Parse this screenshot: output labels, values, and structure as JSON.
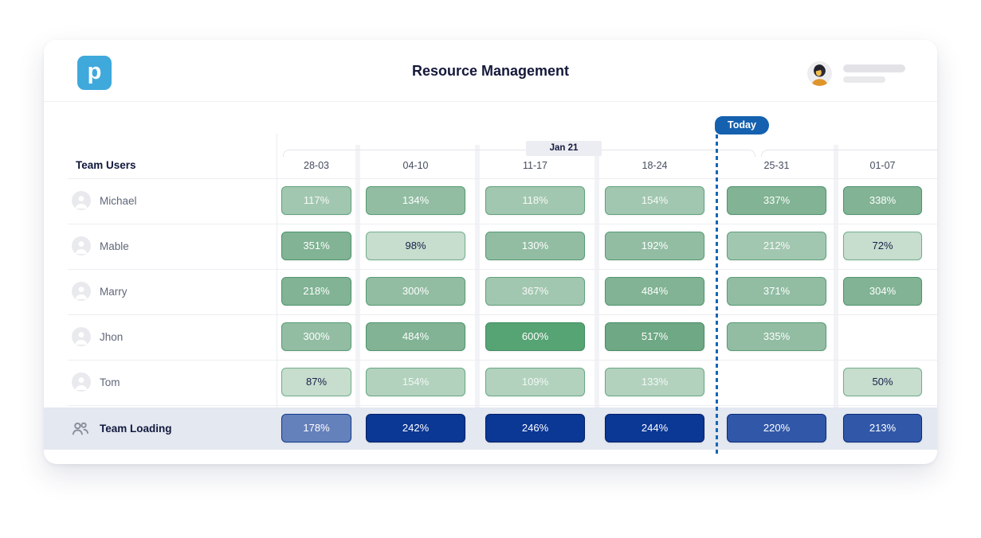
{
  "app": {
    "title": "Resource Management",
    "logo_letter": "p",
    "logo_color": "#3FA9DC"
  },
  "today": {
    "label": "Today",
    "color": "#1561AF",
    "line_color": "#1566B5"
  },
  "timeline": {
    "month_label": "Jan 21",
    "weeks": [
      "28-03",
      "04-10",
      "11-17",
      "18-24",
      "25-31",
      "01-07"
    ]
  },
  "table": {
    "users_header": "Team Users",
    "rows": [
      {
        "name": "Michael",
        "cells": [
          {
            "value": "117%",
            "tone": "g3"
          },
          {
            "value": "134%",
            "tone": "g4"
          },
          {
            "value": "118%",
            "tone": "g3"
          },
          {
            "value": "154%",
            "tone": "g3"
          },
          {
            "value": "337%",
            "tone": "g5"
          },
          {
            "value": "338%",
            "tone": "g5"
          }
        ]
      },
      {
        "name": "Mable",
        "cells": [
          {
            "value": "351%",
            "tone": "g5"
          },
          {
            "value": "98%",
            "tone": "g1"
          },
          {
            "value": "130%",
            "tone": "g4"
          },
          {
            "value": "192%",
            "tone": "g4"
          },
          {
            "value": "212%",
            "tone": "g3"
          },
          {
            "value": "72%",
            "tone": "g1"
          }
        ]
      },
      {
        "name": "Marry",
        "cells": [
          {
            "value": "218%",
            "tone": "g5"
          },
          {
            "value": "300%",
            "tone": "g4"
          },
          {
            "value": "367%",
            "tone": "g3"
          },
          {
            "value": "484%",
            "tone": "g5"
          },
          {
            "value": "371%",
            "tone": "g4"
          },
          {
            "value": "304%",
            "tone": "g5"
          }
        ]
      },
      {
        "name": "Jhon",
        "cells": [
          {
            "value": "300%",
            "tone": "g4"
          },
          {
            "value": "484%",
            "tone": "g5"
          },
          {
            "value": "600%",
            "tone": "g7"
          },
          {
            "value": "517%",
            "tone": "g6"
          },
          {
            "value": "335%",
            "tone": "g4"
          },
          null
        ]
      },
      {
        "name": "Tom",
        "cells": [
          {
            "value": "87%",
            "tone": "g1"
          },
          {
            "value": "154%",
            "tone": "g2"
          },
          {
            "value": "109%",
            "tone": "g2"
          },
          {
            "value": "133%",
            "tone": "g2"
          },
          null,
          {
            "value": "50%",
            "tone": "g1"
          }
        ]
      }
    ],
    "summary": {
      "name": "Team Loading",
      "cells": [
        {
          "value": "178%",
          "tone": "b1"
        },
        {
          "value": "242%",
          "tone": "b2"
        },
        {
          "value": "246%",
          "tone": "b2"
        },
        {
          "value": "244%",
          "tone": "b2"
        },
        {
          "value": "220%",
          "tone": "b3"
        },
        {
          "value": "213%",
          "tone": "b3"
        }
      ]
    }
  },
  "palette": {
    "g1": {
      "bg": "#C7DDCD",
      "bd": "#74AF8E",
      "tx": "#17204A",
      "bw": 1
    },
    "g2": {
      "bg": "#B2D2BE",
      "bd": "#69A884",
      "tx": "#F4F8F5",
      "bw": 1
    },
    "g3": {
      "bg": "#A2C7B0",
      "bd": "#60A17C",
      "tx": "#F7FAF8",
      "bw": 1
    },
    "g4": {
      "bg": "#92BDA3",
      "bd": "#589B74",
      "tx": "#FFFFFF",
      "bw": 1
    },
    "g5": {
      "bg": "#81B394",
      "bd": "#4F946D",
      "tx": "#FFFFFF",
      "bw": 1
    },
    "g6": {
      "bg": "#6FA885",
      "bd": "#458B63",
      "tx": "#FFFFFF",
      "bw": 1
    },
    "g7": {
      "bg": "#56A373",
      "bd": "#3E8E60",
      "tx": "#FFFFFF",
      "bw": 1
    },
    "b1": {
      "bg": "#6581BB",
      "bd": "#123A8B",
      "tx": "#FFFFFF",
      "bw": 1.5
    },
    "b2": {
      "bg": "#0B3795",
      "bd": "#021F63",
      "tx": "#FFFFFF",
      "bw": 1.5
    },
    "b3": {
      "bg": "#3158A8",
      "bd": "#0A2C79",
      "tx": "#FFFFFF",
      "bw": 1.5
    }
  }
}
